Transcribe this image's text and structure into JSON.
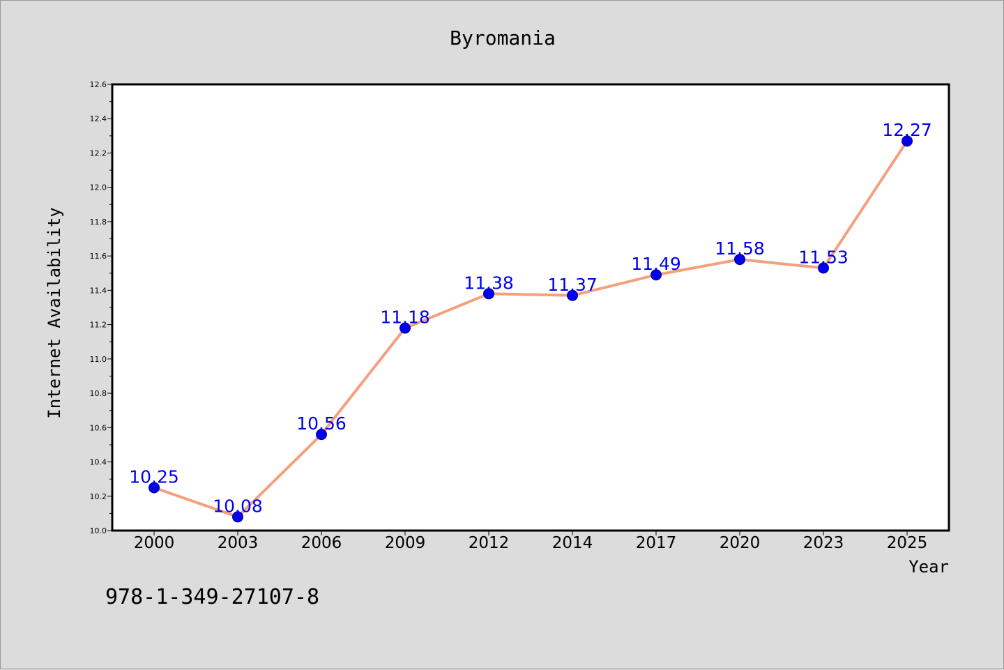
{
  "chart_data": {
    "type": "line",
    "title": "Byromania",
    "xlabel": "Year",
    "ylabel": "Internet Availability",
    "categories": [
      "2000",
      "2003",
      "2006",
      "2009",
      "2012",
      "2014",
      "2017",
      "2020",
      "2023",
      "2025"
    ],
    "series": [
      {
        "values": [
          10.25,
          10.08,
          10.56,
          11.18,
          11.38,
          11.37,
          11.49,
          11.58,
          11.53,
          12.27
        ],
        "labels": [
          "10.25",
          "10.08",
          "10.56",
          "11.18",
          "11.38",
          "11.37",
          "11.49",
          "11.58",
          "11.53",
          "12.27"
        ],
        "line_color": "#f4a07e",
        "marker_color": "#0000ee"
      }
    ],
    "ylim": [
      10.0,
      12.6
    ],
    "yticks": [
      "10.0",
      "10.2",
      "10.4",
      "10.6",
      "10.8",
      "11.0",
      "11.2",
      "11.4",
      "11.6",
      "11.8",
      "12.0",
      "12.2",
      "12.4",
      "12.6"
    ],
    "grid": false,
    "background_color": "#dcdcdc",
    "plot_background_color": "#ffffff"
  },
  "footnote": "978-1-349-27107-8"
}
